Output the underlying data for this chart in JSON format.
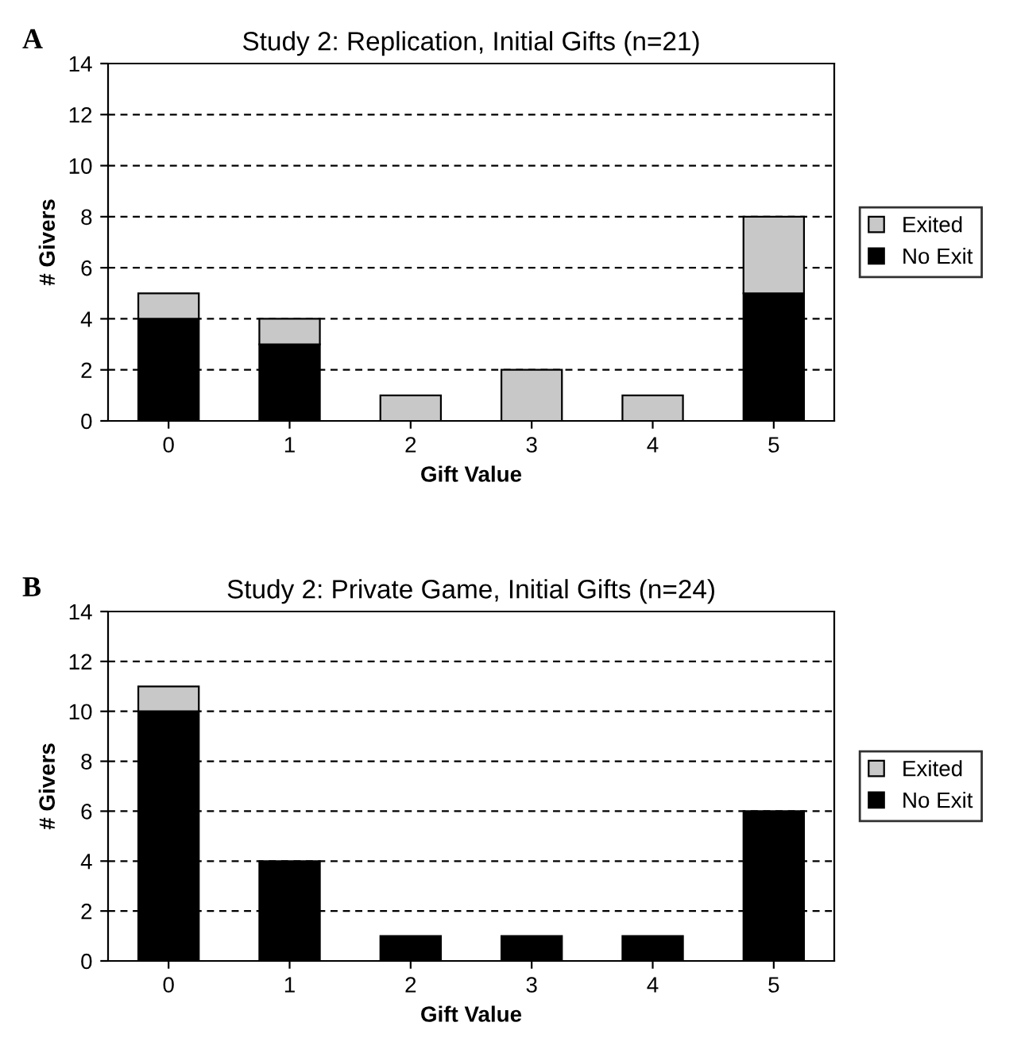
{
  "chart_data": [
    {
      "type": "bar",
      "title": "Study 2: Replication, Initial Gifts (n=21)",
      "xlabel": "Gift Value",
      "ylabel": "# Givers",
      "annotations": [
        "A"
      ],
      "categories": [
        "0",
        "1",
        "2",
        "3",
        "4",
        "5"
      ],
      "stacked": true,
      "ylim": [
        0,
        14
      ],
      "yticks": [
        0,
        2,
        4,
        6,
        8,
        10,
        12,
        14
      ],
      "grid": "y",
      "legend": "right",
      "series": [
        {
          "name": "No Exit",
          "color": "#000000",
          "values": [
            4,
            3,
            0,
            0,
            0,
            5
          ]
        },
        {
          "name": "Exited",
          "color": "#c8c8c8",
          "values": [
            1,
            1,
            1,
            2,
            1,
            3
          ]
        }
      ]
    },
    {
      "type": "bar",
      "title": "Study 2: Private Game, Initial Gifts (n=24)",
      "xlabel": "Gift Value",
      "ylabel": "# Givers",
      "annotations": [
        "B"
      ],
      "categories": [
        "0",
        "1",
        "2",
        "3",
        "4",
        "5"
      ],
      "stacked": true,
      "ylim": [
        0,
        14
      ],
      "yticks": [
        0,
        2,
        4,
        6,
        8,
        10,
        12,
        14
      ],
      "grid": "y",
      "legend": "right",
      "series": [
        {
          "name": "No Exit",
          "color": "#000000",
          "values": [
            10,
            4,
            1,
            1,
            1,
            6
          ]
        },
        {
          "name": "Exited",
          "color": "#c8c8c8",
          "values": [
            1,
            0,
            0,
            0,
            0,
            0
          ]
        }
      ]
    }
  ]
}
